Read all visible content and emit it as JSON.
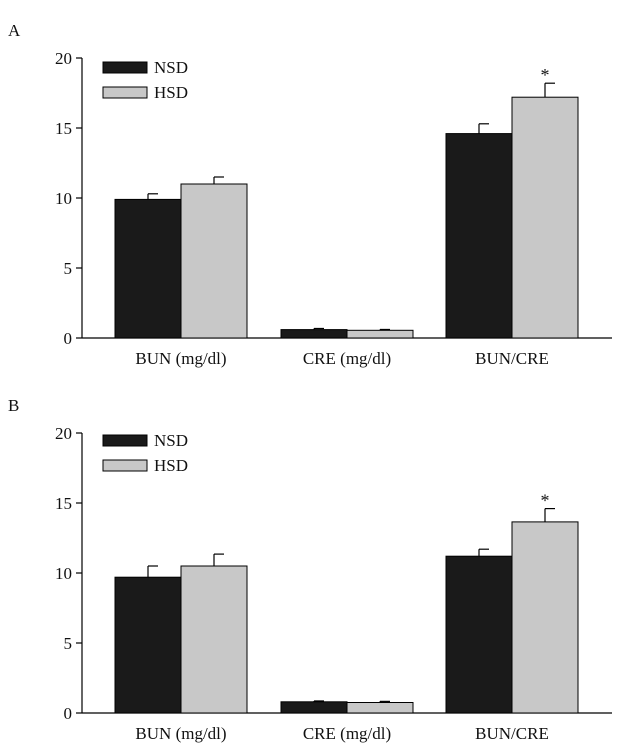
{
  "chart_data": [
    {
      "panel": "A",
      "type": "bar",
      "categories": [
        "BUN (mg/dl)",
        "CRE (mg/dl)",
        "BUN/CRE"
      ],
      "series": [
        {
          "name": "NSD",
          "color": "#1a1a1a",
          "values": [
            9.9,
            0.6,
            14.6
          ],
          "errors": [
            0.4,
            0.08,
            0.7
          ]
        },
        {
          "name": "HSD",
          "color": "#c8c8c8",
          "values": [
            11.0,
            0.55,
            17.2
          ],
          "errors": [
            0.5,
            0.06,
            1.0
          ]
        }
      ],
      "significance": [
        {
          "category": 2,
          "series": 1,
          "marker": "*"
        }
      ],
      "ylim": [
        0,
        20
      ],
      "yticks": [
        0,
        5,
        10,
        15,
        20
      ],
      "legend": "top-left",
      "grid": false
    },
    {
      "panel": "B",
      "type": "bar",
      "categories": [
        "BUN (mg/dl)",
        "CRE (mg/dl)",
        "BUN/CRE"
      ],
      "series": [
        {
          "name": "NSD",
          "color": "#1a1a1a",
          "values": [
            9.7,
            0.8,
            11.2
          ],
          "errors": [
            0.8,
            0.06,
            0.5
          ]
        },
        {
          "name": "HSD",
          "color": "#c8c8c8",
          "values": [
            10.5,
            0.75,
            13.65
          ],
          "errors": [
            0.85,
            0.08,
            0.95
          ]
        }
      ],
      "significance": [
        {
          "category": 2,
          "series": 1,
          "marker": "*"
        }
      ],
      "ylim": [
        0,
        20
      ],
      "yticks": [
        0,
        5,
        10,
        15,
        20
      ],
      "legend": "top-left",
      "grid": false
    }
  ]
}
